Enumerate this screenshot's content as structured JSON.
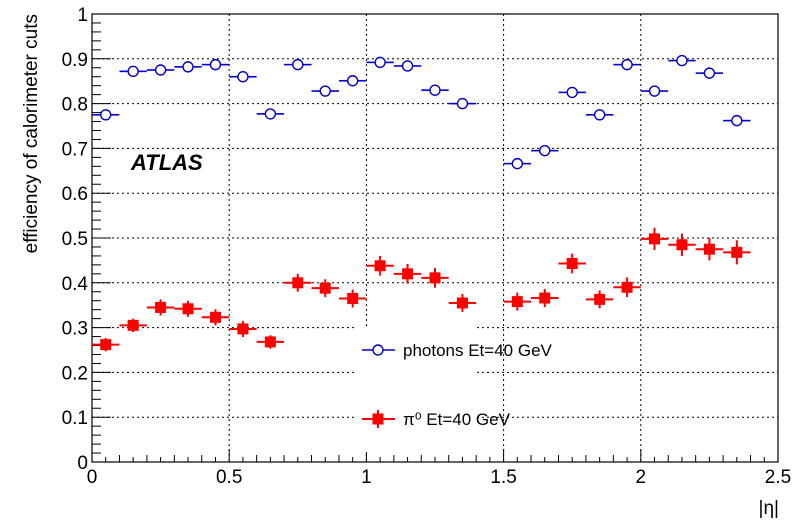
{
  "chart_data": {
    "type": "scatter",
    "title": "",
    "xlabel": "|η|",
    "ylabel": "efficiency of calorimeter cuts",
    "xlim": [
      0,
      2.5
    ],
    "ylim": [
      0,
      1
    ],
    "xticks": [
      0,
      0.5,
      1,
      1.5,
      2,
      2.5
    ],
    "xtick_labels": [
      "0",
      "0.5",
      "1",
      "1.5",
      "2",
      "2.5"
    ],
    "yticks": [
      0,
      0.1,
      0.2,
      0.3,
      0.4,
      0.5,
      0.6,
      0.7,
      0.8,
      0.9,
      1
    ],
    "ytick_labels": [
      "0",
      "0.1",
      "0.2",
      "0.3",
      "0.4",
      "0.5",
      "0.6",
      "0.7",
      "0.8",
      "0.9",
      "1"
    ],
    "grid": true,
    "annotation": "ATLAS",
    "bin_half_width": 0.05,
    "series": [
      {
        "name": "photons Et=40 GeV",
        "marker": "open-circle",
        "color": "#0000cc",
        "x": [
          0.05,
          0.15,
          0.25,
          0.35,
          0.45,
          0.55,
          0.65,
          0.75,
          0.85,
          0.95,
          1.05,
          1.15,
          1.25,
          1.35,
          1.55,
          1.65,
          1.75,
          1.85,
          1.95,
          2.05,
          2.15,
          2.25,
          2.35
        ],
        "y": [
          0.775,
          0.872,
          0.875,
          0.882,
          0.887,
          0.86,
          0.777,
          0.887,
          0.828,
          0.851,
          0.892,
          0.884,
          0.83,
          0.8,
          0.666,
          0.695,
          0.825,
          0.775,
          0.887,
          0.828,
          0.896,
          0.868,
          0.762
        ],
        "yerr": [
          0.005,
          0.005,
          0.005,
          0.005,
          0.005,
          0.005,
          0.006,
          0.005,
          0.006,
          0.005,
          0.005,
          0.005,
          0.006,
          0.006,
          0.007,
          0.007,
          0.006,
          0.006,
          0.005,
          0.006,
          0.005,
          0.006,
          0.006
        ]
      },
      {
        "name": "π⁰ Et=40 GeV",
        "marker": "filled-square",
        "color": "#ff0000",
        "x": [
          0.05,
          0.15,
          0.25,
          0.35,
          0.45,
          0.55,
          0.65,
          0.75,
          0.85,
          0.95,
          1.05,
          1.15,
          1.25,
          1.35,
          1.55,
          1.65,
          1.75,
          1.85,
          1.95,
          2.05,
          2.15,
          2.25,
          2.35
        ],
        "y": [
          0.262,
          0.305,
          0.345,
          0.342,
          0.323,
          0.297,
          0.268,
          0.4,
          0.388,
          0.365,
          0.438,
          0.42,
          0.411,
          0.355,
          0.358,
          0.366,
          0.443,
          0.363,
          0.39,
          0.498,
          0.485,
          0.475,
          0.468
        ],
        "yerr": [
          0.015,
          0.015,
          0.018,
          0.018,
          0.018,
          0.018,
          0.015,
          0.02,
          0.02,
          0.02,
          0.022,
          0.022,
          0.022,
          0.02,
          0.02,
          0.02,
          0.022,
          0.02,
          0.022,
          0.025,
          0.025,
          0.025,
          0.027
        ]
      }
    ],
    "legend": [
      {
        "label": "photons Et=40 GeV",
        "marker": "open-circle"
      },
      {
        "label": "π⁰ Et=40 GeV",
        "marker": "filled-square"
      }
    ]
  }
}
